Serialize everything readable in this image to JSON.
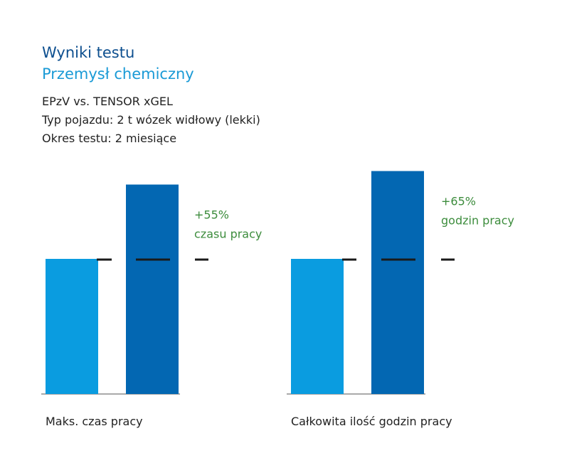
{
  "header": {
    "title": "Wyniki testu",
    "subtitle": "Przemysł chemiczny",
    "info": [
      "EPzV vs. TENSOR xGEL",
      "Typ pojazdu: 2 t wózek widłowy (lekki)",
      "Okres testu: 2 miesiące"
    ]
  },
  "colors": {
    "series_before": "#0a9ce0",
    "series_after": "#0367b2",
    "annotation": "#3c8c3c",
    "reference_mark": "#1a1a1a"
  },
  "chart_data": [
    {
      "type": "bar",
      "categories": [
        "Maks. czas pracy"
      ],
      "series": [
        {
          "values": [
            100
          ]
        },
        {
          "values": [
            155
          ]
        }
      ],
      "ylim": [
        0,
        160
      ],
      "annotation": [
        "+55%",
        "czasu pracy"
      ]
    },
    {
      "type": "bar",
      "categories": [
        "Całkowita ilość godzin pracy"
      ],
      "series": [
        {
          "values": [
            100
          ]
        },
        {
          "values": [
            165
          ]
        }
      ],
      "ylim": [
        0,
        170
      ],
      "annotation": [
        "+65%",
        "godzin pracy"
      ]
    }
  ]
}
